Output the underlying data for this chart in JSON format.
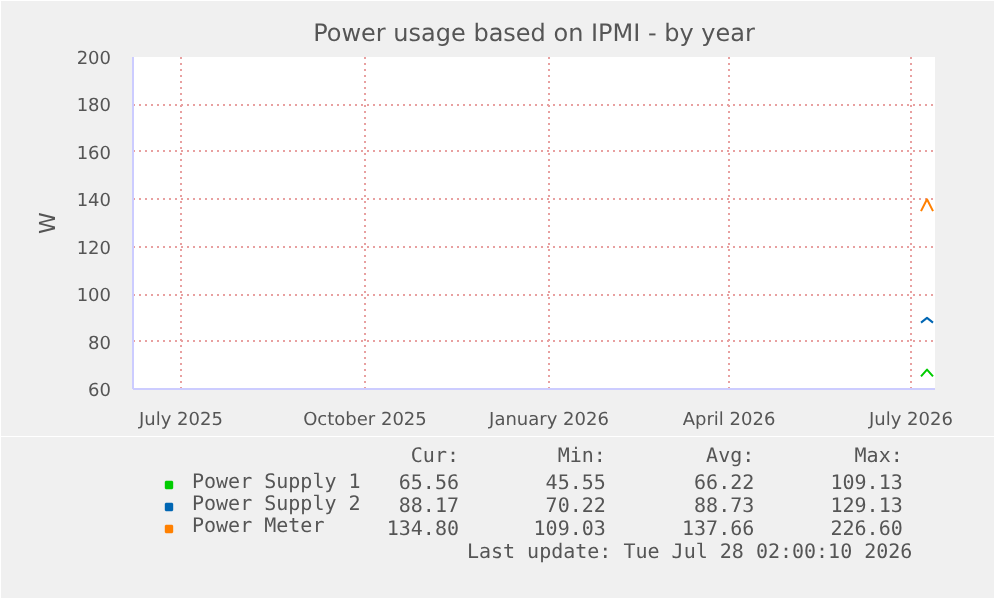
{
  "chart_data": {
    "type": "line",
    "title": "Power usage based on IPMI - by year",
    "ylabel": "W",
    "x": [
      "2026-07-21",
      "2026-07-24",
      "2026-07-27"
    ],
    "series": [
      {
        "name": "Power Supply 1",
        "color": "#00cc00",
        "values": [
          65.3,
          68.2,
          65.3
        ]
      },
      {
        "name": "Power Supply 2",
        "color": "#0066b3",
        "values": [
          88,
          90,
          88
        ]
      },
      {
        "name": "Power Meter",
        "color": "#ff8000",
        "values": [
          135,
          140,
          135
        ]
      }
    ],
    "xlim": [
      "2025-06-22",
      "2026-07-28"
    ],
    "xticks": [
      {
        "value": "2025-07-16",
        "label": "July 2025"
      },
      {
        "value": "2025-10-16",
        "label": "October 2025"
      },
      {
        "value": "2026-01-16",
        "label": "January 2026"
      },
      {
        "value": "2026-04-16",
        "label": "April 2026"
      },
      {
        "value": "2026-07-16",
        "label": "July 2026"
      }
    ],
    "ylim": [
      60,
      200
    ],
    "yticks": [
      60,
      80,
      100,
      120,
      140,
      160,
      180,
      200
    ],
    "grid": true,
    "legend": "bottom left",
    "marker": "none",
    "line_style": "solid",
    "annotations": [
      "Cur:",
      "Min:",
      "Avg:",
      "Max:",
      "65.56",
      "45.55",
      "66.22",
      "109.13",
      "88.17",
      "70.22",
      "88.73",
      "129.13",
      "134.80",
      "109.03",
      "137.66",
      "226.60",
      "Last update: Tue Jul 28 02:00:10 2026"
    ]
  }
}
